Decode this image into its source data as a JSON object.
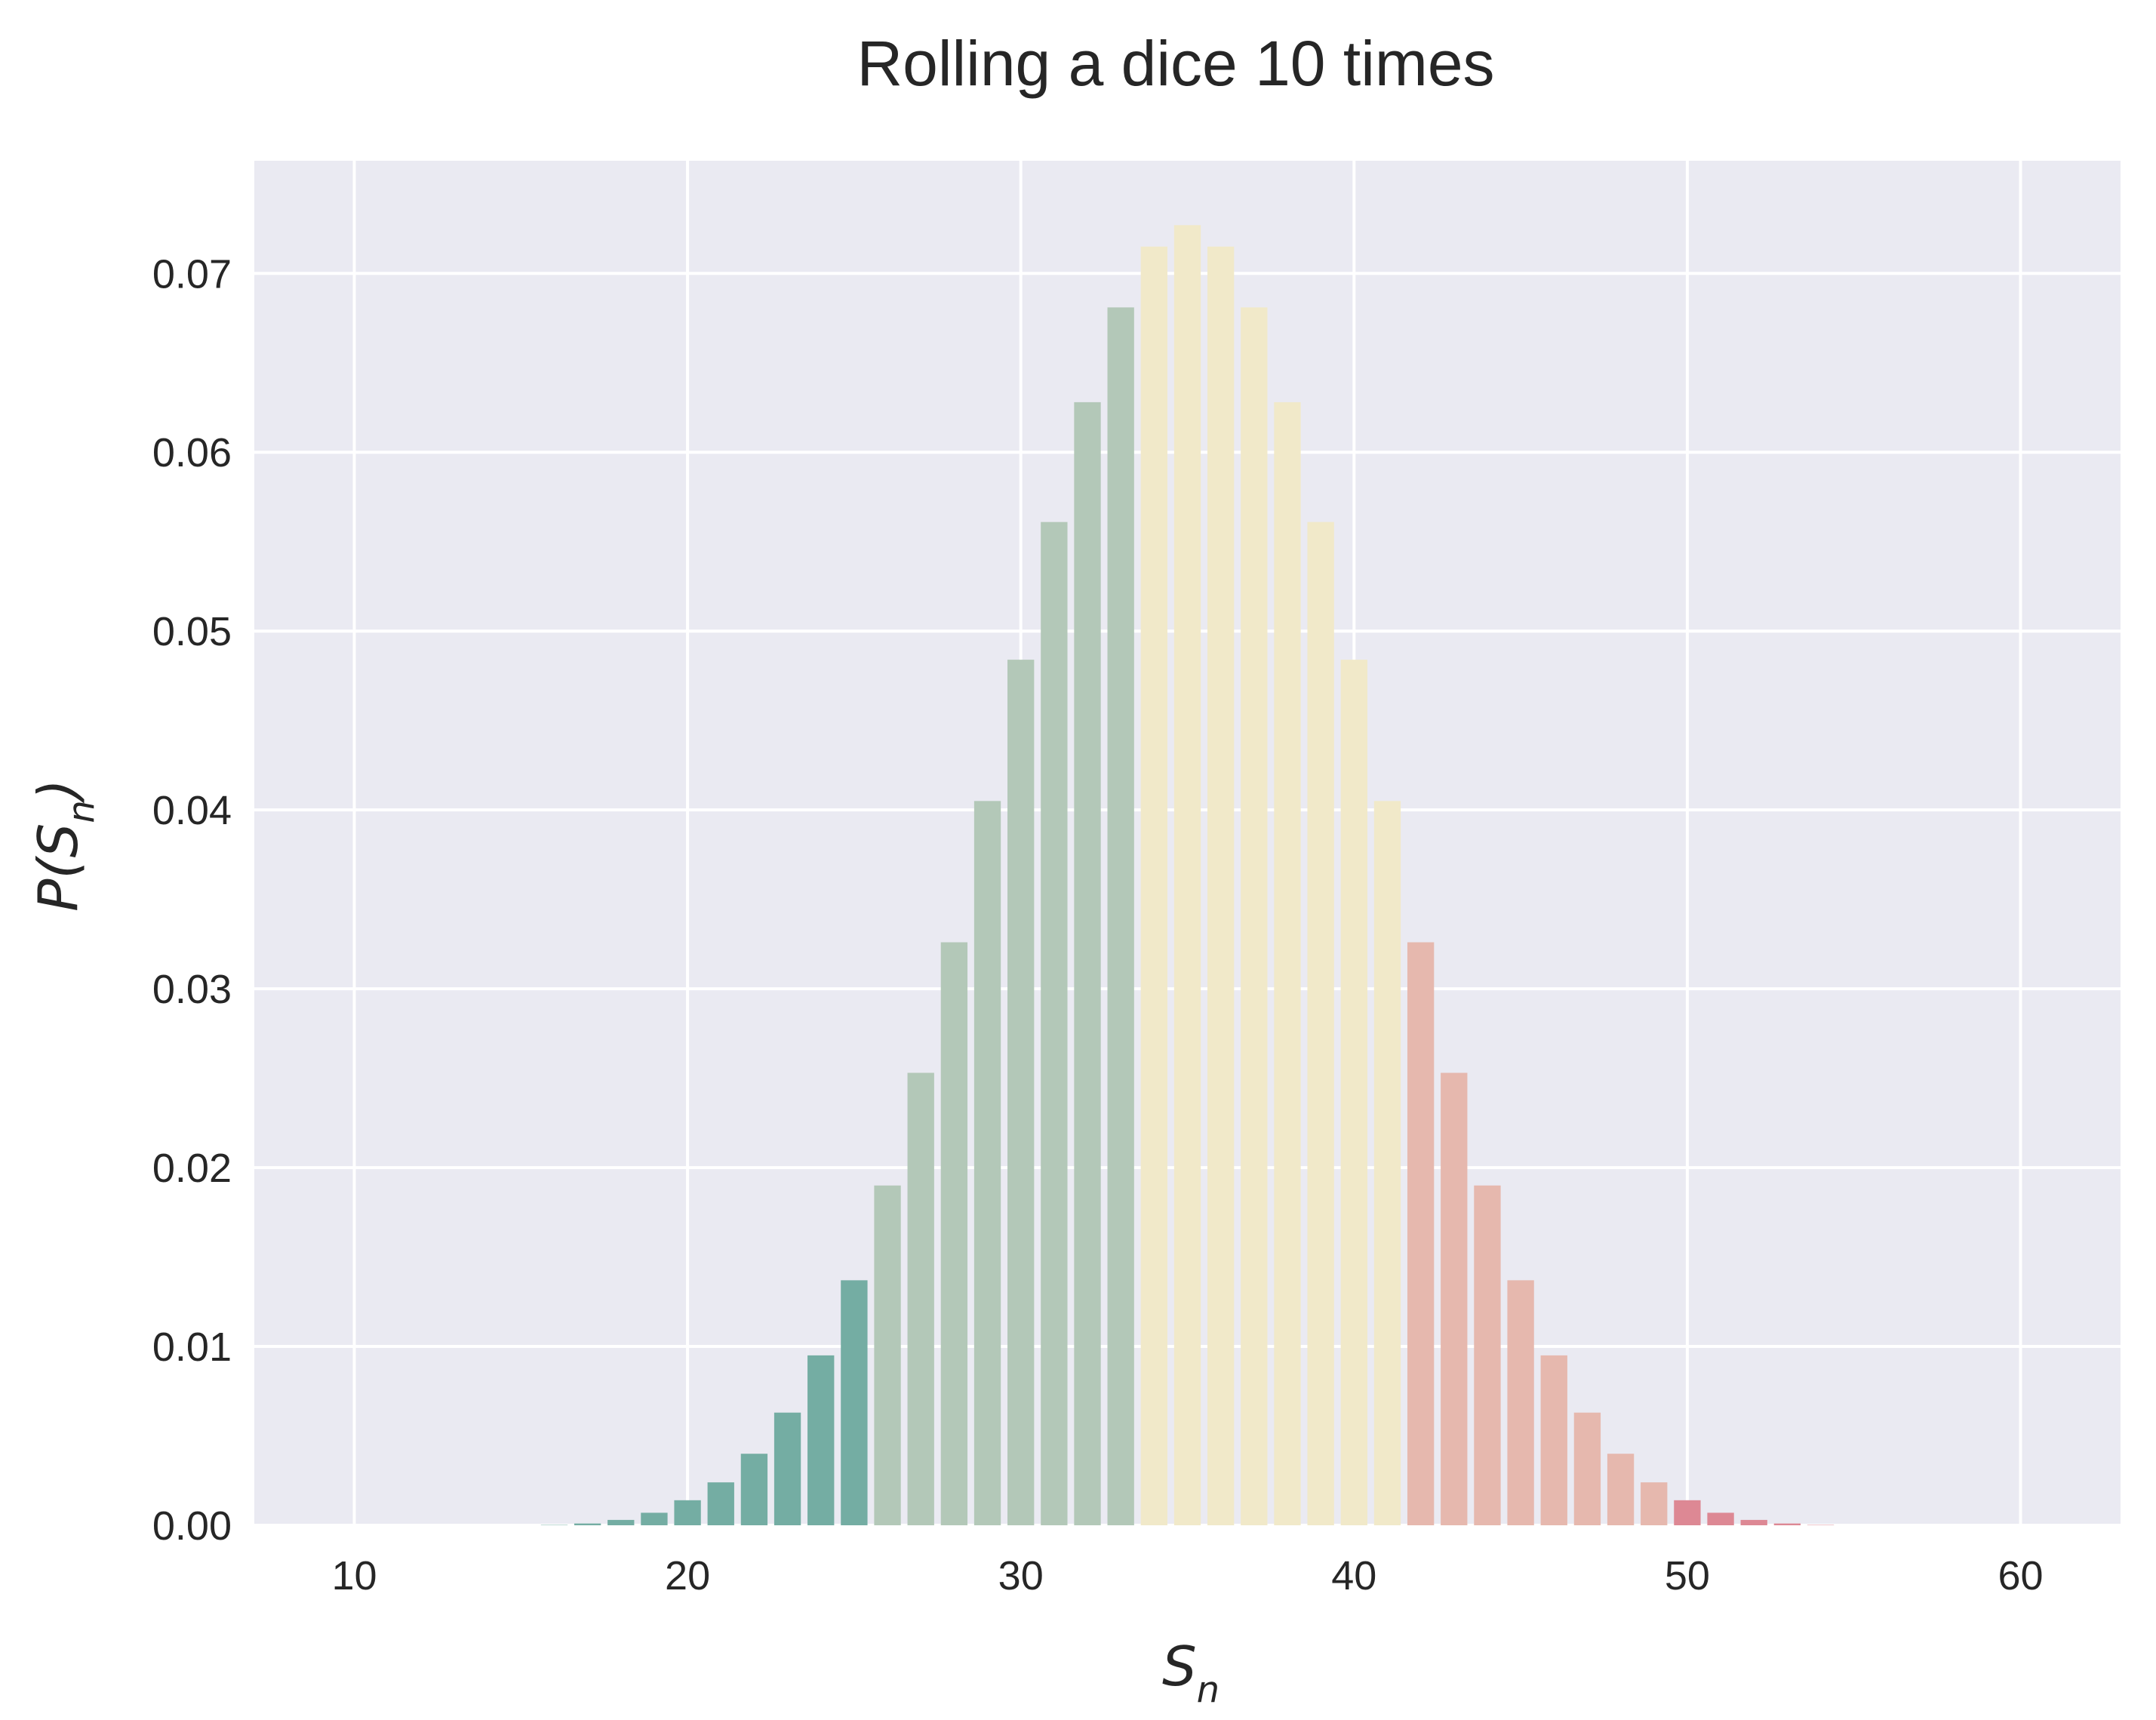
{
  "chart_data": {
    "type": "bar",
    "title": "Rolling a dice 10 times",
    "xlabel_main": "S",
    "xlabel_sub": "n",
    "ylabel_prefix": "P(",
    "ylabel_main": "S",
    "ylabel_sub": "n",
    "ylabel_suffix": ")",
    "xlim": [
      7,
      63
    ],
    "ylim": [
      0,
      0.0763
    ],
    "xticks": [
      10,
      20,
      30,
      40,
      50,
      60
    ],
    "xtick_labels": [
      "10",
      "20",
      "30",
      "40",
      "50",
      "60"
    ],
    "yticks": [
      0.0,
      0.01,
      0.02,
      0.03,
      0.04,
      0.05,
      0.06,
      0.07
    ],
    "ytick_labels": [
      "0.00",
      "0.01",
      "0.02",
      "0.03",
      "0.04",
      "0.05",
      "0.06",
      "0.07"
    ],
    "grid": true,
    "background": "#eaeaf2",
    "grid_color": "#ffffff",
    "x": [
      10,
      11,
      12,
      13,
      14,
      15,
      16,
      17,
      18,
      19,
      20,
      21,
      22,
      23,
      24,
      25,
      26,
      27,
      28,
      29,
      30,
      31,
      32,
      33,
      34,
      35,
      36,
      37,
      38,
      39,
      40,
      41,
      42,
      43,
      44,
      45,
      46,
      47,
      48,
      49,
      50,
      51,
      52,
      53,
      54,
      55,
      56,
      57,
      58,
      59,
      60
    ],
    "values": [
      0.0,
      0.0,
      0.0,
      0.0,
      0.0,
      0.0,
      2e-05,
      0.0001,
      0.0003,
      0.0007,
      0.0014,
      0.0024,
      0.004,
      0.0063,
      0.0095,
      0.0137,
      0.019,
      0.0253,
      0.0326,
      0.0405,
      0.0484,
      0.0561,
      0.0628,
      0.0681,
      0.0715,
      0.0727,
      0.0715,
      0.0681,
      0.0628,
      0.0561,
      0.0484,
      0.0405,
      0.0326,
      0.0253,
      0.019,
      0.0137,
      0.0095,
      0.0063,
      0.004,
      0.0024,
      0.0014,
      0.0007,
      0.0003,
      0.0001,
      2e-05,
      0.0,
      0.0,
      0.0,
      0.0,
      0.0,
      0.0
    ],
    "color_groups": [
      {
        "from": 10,
        "to": 25,
        "color": "#74ada3"
      },
      {
        "from": 26,
        "to": 33,
        "color": "#b3c8b8"
      },
      {
        "from": 34,
        "to": 41,
        "color": "#f1e9c9"
      },
      {
        "from": 42,
        "to": 49,
        "color": "#e6b8ae"
      },
      {
        "from": 50,
        "to": 60,
        "color": "#dd8894"
      }
    ]
  }
}
